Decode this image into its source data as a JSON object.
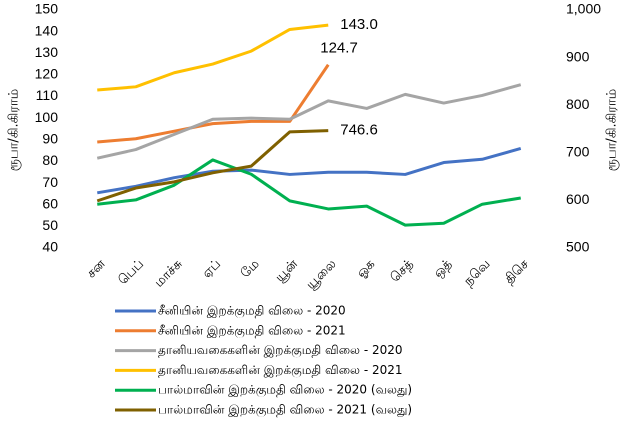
{
  "chart_data": {
    "type": "line",
    "y_label": "ரூபா/கி.கிராம்",
    "y2_label": "ரூபா/கி.கிராம்",
    "categories": [
      "சன",
      "பெப்",
      "மாச்சு",
      "ஏப்",
      "மே",
      "யூன்",
      "யூலை",
      "ஓக",
      "செத்",
      "ஒத்",
      "நவெ",
      "திசெ"
    ],
    "ylim": [
      40,
      150
    ],
    "yticks": [
      40,
      50,
      60,
      70,
      80,
      90,
      100,
      110,
      120,
      130,
      140,
      150
    ],
    "y2lim": [
      500,
      1000
    ],
    "y2ticks": [
      500,
      600,
      700,
      800,
      900,
      {
        "value": 1000,
        "label": "1,000"
      }
    ],
    "legend": "bottom",
    "series": [
      {
        "name": "சீனியின் இறக்குமதி விலை - 2020",
        "color": "#4472c4",
        "values": [
          65.5,
          68.5,
          72.5,
          75.5,
          76,
          74,
          75,
          75,
          74,
          79.5,
          81,
          86
        ]
      },
      {
        "name": "சீனியின் இறக்குமதி விலை - 2021",
        "color": "#ed7d31",
        "values": [
          89,
          90.5,
          94,
          97.5,
          98.5,
          98.5,
          124.7,
          null,
          null,
          null,
          null,
          null
        ],
        "value_labels": [
          null,
          null,
          null,
          null,
          null,
          null,
          "124.7",
          null,
          null,
          null,
          null,
          null
        ]
      },
      {
        "name": "தானியவகைகளின் இறக்குமதி விலை - 2020",
        "color": "#a5a5a5",
        "values": [
          81.5,
          85.5,
          92.5,
          99.5,
          100,
          99.5,
          108,
          104.5,
          111,
          107,
          110.5,
          115.5
        ]
      },
      {
        "name": "தானியவகைகளின் இறக்குமதி விலை - 2021",
        "color": "#ffc000",
        "values": [
          113,
          114.5,
          121,
          125,
          131,
          141,
          143.0,
          null,
          null,
          null,
          null,
          null
        ],
        "value_labels": [
          null,
          null,
          null,
          null,
          null,
          null,
          "143.0",
          null,
          null,
          null,
          null,
          null
        ]
      },
      {
        "name": "பால்மாவின் இறக்குமதி விலை - 2020 (வலது)",
        "color": "#00b050",
        "axis": "y2",
        "values": [
          592,
          601,
          632,
          685,
          655,
          599,
          582,
          588,
          548,
          552,
          592,
          605
        ]
      },
      {
        "name": "பால்மாவின் இறக்குமதி விலை - 2021 (வலது)",
        "color": "#7f6000",
        "axis": "y2",
        "values": [
          599,
          626,
          639,
          658,
          672,
          744,
          746.6,
          null,
          null,
          null,
          null,
          null
        ],
        "value_labels": [
          null,
          null,
          null,
          null,
          null,
          null,
          "746.6",
          null,
          null,
          null,
          null,
          null
        ]
      }
    ]
  }
}
